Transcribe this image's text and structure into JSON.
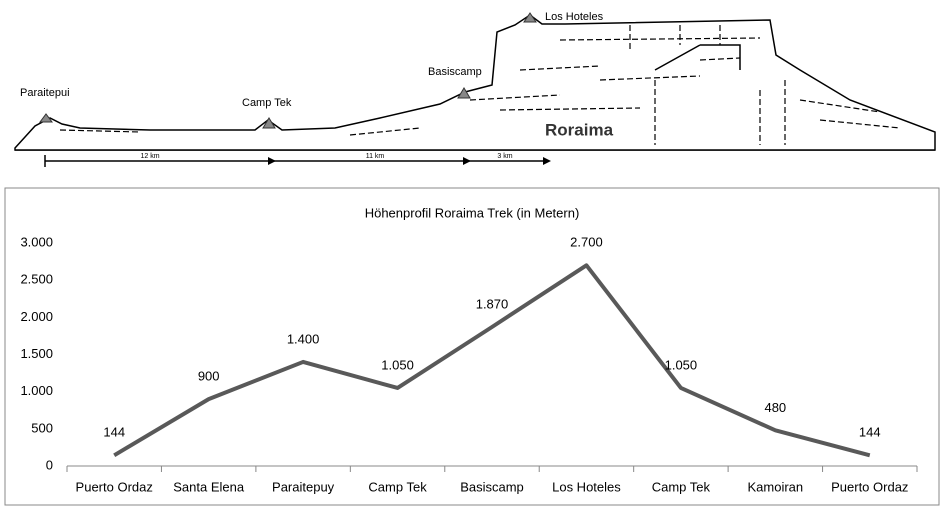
{
  "illustration": {
    "labels": [
      "Paraitepui",
      "Camp Tek",
      "Basiscamp",
      "Los Hoteles"
    ],
    "mountain": "Roraima",
    "distances": [
      "12 km",
      "11 km",
      "3 km"
    ]
  },
  "chart_data": {
    "type": "line",
    "title": "Höhenprofil Roraima Trek (in Metern)",
    "categories": [
      "Puerto Ordaz",
      "Santa Elena",
      "Paraitepuy",
      "Camp Tek",
      "Basiscamp",
      "Los Hoteles",
      "Camp Tek",
      "Kamoiran",
      "Puerto Ordaz"
    ],
    "values": [
      144,
      900,
      1400,
      1050,
      1870,
      2700,
      1050,
      480,
      144
    ],
    "value_labels": [
      "144",
      "900",
      "1.400",
      "1.050",
      "1.870",
      "2.700",
      "1.050",
      "480",
      "144"
    ],
    "color": "#595959",
    "ylim": [
      0,
      3000
    ],
    "yticks": [
      0,
      500,
      {
        "value": 1000,
        "label": "1.000"
      },
      {
        "value": 1500,
        "label": "1.500"
      },
      {
        "value": 2000,
        "label": "2.000"
      },
      {
        "value": 2500,
        "label": "2.500"
      },
      {
        "value": 3000,
        "label": "3.000"
      }
    ],
    "grid": false
  }
}
